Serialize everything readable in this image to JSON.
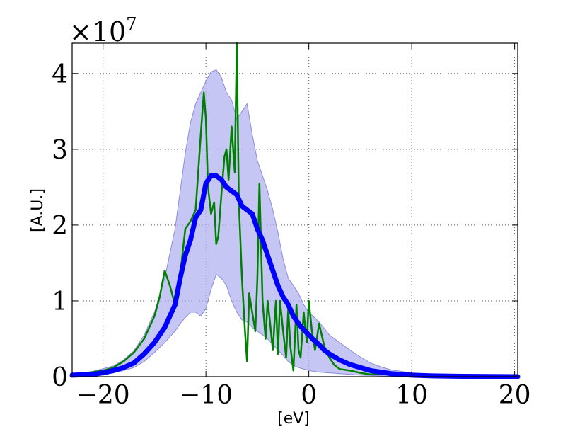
{
  "chart_data": {
    "type": "line",
    "xlabel": "[eV]",
    "ylabel": "[A.U.]",
    "multiplier_base": "×10",
    "multiplier_exp": "7",
    "xlim": [
      -23,
      20.3
    ],
    "ylim": [
      0,
      4.4
    ],
    "xticks": [
      -20,
      -10,
      0,
      10,
      20
    ],
    "xtick_labels": [
      "−20",
      "−10",
      "0",
      "10",
      "20"
    ],
    "yticks": [
      0,
      1,
      2,
      3,
      4
    ],
    "ytick_labels": [
      "0",
      "1",
      "2",
      "3",
      "4"
    ],
    "grid": true,
    "colors": {
      "mean": "#0000ff",
      "band": "#b3b3f2",
      "band_edge": "#8c8cd9",
      "sample": "#008000"
    },
    "band": {
      "x": [
        -23,
        -21,
        -19,
        -18,
        -17,
        -16,
        -15,
        -14,
        -13,
        -12.5,
        -12,
        -11.5,
        -11,
        -10.5,
        -10,
        -9.5,
        -9,
        -8.5,
        -8,
        -7.5,
        -7,
        -6.5,
        -6,
        -5.5,
        -5,
        -4.5,
        -4,
        -3.5,
        -3,
        -2.5,
        -2,
        -1.5,
        -1,
        -0.5,
        0,
        1,
        2,
        3,
        4,
        5,
        6,
        7,
        8,
        10,
        12,
        15,
        20.3
      ],
      "upper": [
        0.03,
        0.07,
        0.14,
        0.22,
        0.34,
        0.55,
        0.85,
        1.3,
        1.95,
        2.45,
        2.95,
        3.35,
        3.6,
        3.75,
        3.9,
        4.02,
        4.05,
        3.95,
        3.75,
        3.65,
        3.4,
        3.5,
        3.6,
        3.2,
        2.85,
        2.65,
        2.45,
        2.2,
        1.9,
        1.55,
        1.3,
        1.2,
        1.1,
        0.95,
        0.85,
        0.72,
        0.55,
        0.45,
        0.35,
        0.26,
        0.18,
        0.13,
        0.09,
        0.05,
        0.03,
        0.015,
        0.005
      ],
      "lower": [
        0.0,
        0.02,
        0.05,
        0.08,
        0.12,
        0.2,
        0.32,
        0.45,
        0.6,
        0.7,
        0.78,
        0.85,
        0.85,
        0.8,
        0.9,
        1.15,
        1.35,
        1.3,
        1.2,
        1.0,
        0.85,
        0.75,
        0.72,
        0.65,
        0.6,
        0.55,
        0.5,
        0.42,
        0.35,
        0.28,
        0.2,
        0.15,
        0.12,
        0.1,
        0.08,
        0.06,
        0.05,
        0.04,
        0.03,
        0.02,
        0.015,
        0.01,
        0.005,
        0.002,
        0.0,
        0.0,
        0.0
      ]
    },
    "series": [
      {
        "x": [
          -23,
          -21,
          -20,
          -19,
          -18,
          -17,
          -16,
          -15,
          -14.5,
          -14,
          -13.5,
          -13,
          -12.5,
          -12,
          -11.5,
          -11,
          -10.5,
          -10.2,
          -10,
          -9.8,
          -9.5,
          -9.2,
          -9,
          -8.8,
          -8.5,
          -8.2,
          -8,
          -7.8,
          -7.5,
          -7.2,
          -7,
          -6.8,
          -6.5,
          -6.2,
          -6,
          -5.8,
          -5.5,
          -5.2,
          -5,
          -4.8,
          -4.5,
          -4.2,
          -4,
          -3.8,
          -3.5,
          -3.2,
          -3,
          -2.8,
          -2.5,
          -2.2,
          -2,
          -1.8,
          -1.5,
          -1.2,
          -1,
          -0.8,
          -0.5,
          -0.2,
          0,
          0.3,
          0.6,
          1,
          1.5,
          2,
          2.5,
          3,
          4,
          5,
          6,
          7,
          8,
          8.5,
          9,
          10,
          12,
          15,
          20.3
        ],
        "values": [
          0.03,
          0.06,
          0.08,
          0.12,
          0.2,
          0.32,
          0.5,
          0.8,
          1.05,
          1.4,
          1.2,
          0.95,
          1.35,
          1.95,
          2.05,
          2.2,
          3.2,
          3.75,
          3.4,
          2.5,
          2.15,
          2.3,
          1.75,
          1.85,
          2.4,
          2.9,
          3.0,
          2.6,
          3.3,
          2.7,
          4.4,
          2.3,
          1.3,
          0.6,
          0.2,
          1.1,
          0.85,
          0.6,
          1.3,
          2.55,
          1.0,
          0.5,
          1.0,
          0.75,
          0.35,
          1.0,
          0.3,
          1.0,
          0.6,
          0.25,
          0.9,
          0.4,
          0.08,
          0.95,
          0.35,
          0.25,
          0.85,
          0.45,
          1.0,
          0.6,
          0.35,
          0.7,
          0.4,
          0.25,
          0.15,
          0.1,
          0.08,
          0.05,
          0.03,
          0.04,
          0.02,
          0.03,
          0.01,
          0.01,
          0.0,
          0.0,
          0.0
        ]
      },
      {
        "x": [
          -23,
          -21,
          -20,
          -19,
          -18,
          -17,
          -16,
          -15,
          -14,
          -13,
          -12.5,
          -12,
          -11.5,
          -11,
          -10.5,
          -10,
          -9.5,
          -9,
          -8.5,
          -8,
          -7.5,
          -7,
          -6.5,
          -6,
          -5.5,
          -5,
          -4.5,
          -4,
          -3.5,
          -3,
          -2.5,
          -2,
          -1.5,
          -1,
          -0.5,
          0,
          0.5,
          1,
          1.5,
          2,
          3,
          4,
          5,
          6,
          7,
          8,
          10,
          12,
          15,
          20.3
        ],
        "values": [
          0.02,
          0.03,
          0.05,
          0.08,
          0.12,
          0.18,
          0.3,
          0.45,
          0.65,
          0.95,
          1.3,
          1.6,
          1.8,
          2.1,
          2.2,
          2.55,
          2.65,
          2.65,
          2.6,
          2.5,
          2.45,
          2.4,
          2.25,
          2.2,
          2.15,
          1.95,
          1.8,
          1.6,
          1.4,
          1.2,
          1.05,
          0.95,
          0.8,
          0.7,
          0.62,
          0.55,
          0.48,
          0.42,
          0.35,
          0.3,
          0.22,
          0.16,
          0.12,
          0.08,
          0.06,
          0.04,
          0.02,
          0.01,
          0.005,
          0.0
        ]
      }
    ]
  }
}
